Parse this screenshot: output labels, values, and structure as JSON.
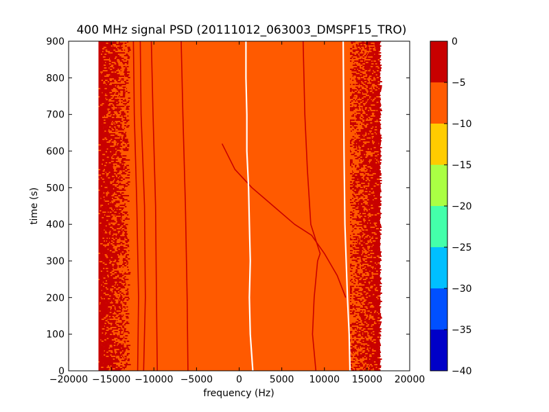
{
  "chart_data": {
    "type": "heatmap",
    "title": "400 MHz signal PSD (20111012_063003_DMSPF15_TRO)",
    "xlabel": "frequency (Hz)",
    "ylabel": "time (s)",
    "xlim": [
      -20000,
      20000
    ],
    "ylim": [
      0,
      900
    ],
    "xticks": [
      -20000,
      -15000,
      -10000,
      -5000,
      0,
      5000,
      10000,
      15000,
      20000
    ],
    "xtick_labels": [
      "−20000",
      "−15000",
      "−10000",
      "−5000",
      "0",
      "5000",
      "10000",
      "15000",
      "20000"
    ],
    "yticks": [
      0,
      100,
      200,
      300,
      400,
      500,
      600,
      700,
      800,
      900
    ],
    "ytick_labels": [
      "0",
      "100",
      "200",
      "300",
      "400",
      "500",
      "600",
      "700",
      "800",
      "900"
    ],
    "data_extent_x": [
      -16500,
      16500
    ],
    "background_level_band": [
      -10,
      -5
    ],
    "noisy_edge_bands": [
      [
        -16500,
        -13000
      ],
      [
        13000,
        16500
      ]
    ],
    "colorbar": {
      "levels": [
        -40,
        -35,
        -30,
        -25,
        -20,
        -15,
        -10,
        -5,
        0
      ],
      "tick_labels": [
        "−40",
        "−35",
        "−30",
        "−25",
        "−20",
        "−15",
        "−10",
        "−5",
        "0"
      ],
      "colors": [
        "#0000c8",
        "#0050ff",
        "#00bfff",
        "#44ffaa",
        "#aaff44",
        "#ffcc00",
        "#ff5a00",
        "#c80000"
      ]
    },
    "traces": [
      {
        "kind": "peak",
        "points": [
          [
            -11900,
            0
          ],
          [
            -11800,
            200
          ],
          [
            -12000,
            450
          ],
          [
            -12300,
            700
          ],
          [
            -12400,
            900
          ]
        ]
      },
      {
        "kind": "peak",
        "points": [
          [
            -11200,
            0
          ],
          [
            -11000,
            200
          ],
          [
            -11100,
            450
          ],
          [
            -11500,
            700
          ],
          [
            -11600,
            900
          ]
        ]
      },
      {
        "kind": "peak",
        "points": [
          [
            -9600,
            0
          ],
          [
            -9700,
            200
          ],
          [
            -9800,
            450
          ],
          [
            -10100,
            700
          ],
          [
            -10300,
            900
          ]
        ]
      },
      {
        "kind": "peak",
        "points": [
          [
            -6000,
            0
          ],
          [
            -6100,
            200
          ],
          [
            -6300,
            450
          ],
          [
            -6600,
            700
          ],
          [
            -6800,
            900
          ]
        ]
      },
      {
        "kind": "peak",
        "points": [
          [
            9000,
            0
          ],
          [
            8600,
            100
          ],
          [
            8800,
            200
          ],
          [
            9200,
            300
          ],
          [
            9500,
            320
          ],
          [
            8400,
            400
          ],
          [
            8000,
            550
          ],
          [
            7700,
            700
          ],
          [
            7500,
            900
          ]
        ]
      },
      {
        "kind": "peak",
        "points": [
          [
            -2000,
            620
          ],
          [
            -500,
            550
          ],
          [
            1500,
            500
          ],
          [
            4000,
            450
          ],
          [
            6500,
            400
          ],
          [
            8500,
            370
          ],
          [
            10000,
            320
          ],
          [
            11500,
            260
          ],
          [
            12500,
            200
          ]
        ]
      },
      {
        "kind": "gap",
        "points": [
          [
            1600,
            0
          ],
          [
            1300,
            100
          ],
          [
            1200,
            200
          ],
          [
            1300,
            300
          ],
          [
            1200,
            400
          ],
          [
            1100,
            500
          ],
          [
            900,
            600
          ],
          [
            900,
            700
          ],
          [
            800,
            800
          ],
          [
            800,
            900
          ]
        ]
      },
      {
        "kind": "gap",
        "points": [
          [
            13000,
            0
          ],
          [
            12900,
            100
          ],
          [
            12700,
            200
          ],
          [
            12400,
            400
          ],
          [
            12300,
            600
          ],
          [
            12200,
            900
          ]
        ]
      }
    ]
  }
}
